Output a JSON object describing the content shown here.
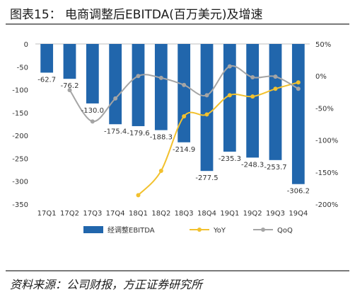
{
  "title": "图表15： 电商调整后EBITDA(百万美元)及增速",
  "source": "资料来源：公司财报，方正证券研究所",
  "chart_data": {
    "type": "bar",
    "categories": [
      "17Q1",
      "17Q2",
      "17Q3",
      "17Q4",
      "18Q1",
      "18Q2",
      "18Q3",
      "18Q4",
      "19Q1",
      "19Q2",
      "19Q3",
      "19Q4"
    ],
    "series": [
      {
        "name": "经调整EBITDA",
        "type": "bar",
        "axis": "left",
        "color": "#2166ac",
        "values": [
          -62.7,
          -76.2,
          -130.0,
          -175.4,
          -179.6,
          -188.3,
          -214.9,
          -277.5,
          -235.3,
          -248.3,
          -253.7,
          -306.2
        ],
        "labels": [
          "-62.7",
          "-76.2",
          "-130.0",
          "-175.4",
          "-179.6",
          "-188.3",
          "-214.9",
          "-277.5",
          "-235.3",
          "-248.3",
          "-253.7",
          "-306.2"
        ]
      },
      {
        "name": "YoY",
        "type": "line",
        "axis": "right",
        "color": "#f2c12e",
        "values": [
          null,
          null,
          null,
          null,
          -186,
          -148,
          -63,
          -60,
          -30,
          -32,
          -20,
          -10
        ]
      },
      {
        "name": "QoQ",
        "type": "line",
        "axis": "right",
        "color": "#a5a5a5",
        "values": [
          null,
          -22,
          -71,
          -35,
          0,
          -3,
          -14,
          -30,
          15,
          -2,
          -1,
          -20
        ]
      }
    ],
    "ylim_left": [
      -350,
      0
    ],
    "yticks_left": [
      "0",
      "-50",
      "-100",
      "-150",
      "-200",
      "-250",
      "-300",
      "-350"
    ],
    "ylim_right": [
      -200,
      50
    ],
    "yticks_right": [
      "50%",
      "0%",
      "-50%",
      "-100%",
      "-150%",
      "-200%"
    ],
    "grid": false,
    "legend": "bottom"
  }
}
